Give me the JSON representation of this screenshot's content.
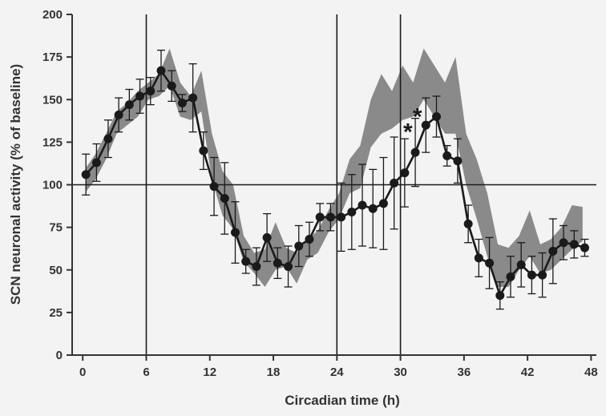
{
  "chart_data": {
    "type": "line",
    "title": "",
    "xlabel": "Circadian time (h)",
    "ylabel": "SCN neuronal activity (% of baseline)",
    "xlim": [
      -1,
      48.5
    ],
    "ylim": [
      0,
      200
    ],
    "x_ticks": [
      0,
      6,
      12,
      18,
      24,
      30,
      36,
      42,
      48
    ],
    "y_ticks": [
      0,
      25,
      50,
      75,
      100,
      125,
      150,
      175,
      200
    ],
    "reference_lines": {
      "vertical": [
        6,
        24,
        30
      ],
      "horizontal": [
        100
      ]
    },
    "annotations": [
      {
        "text": "*",
        "x": 30.7,
        "y": 132
      },
      {
        "text": "*",
        "x": 31.6,
        "y": 141
      }
    ],
    "shaded_band": {
      "x": [
        0.3,
        1.2,
        2.2,
        3.2,
        4.2,
        5.2,
        6.2,
        7.2,
        8.2,
        9.2,
        10.2,
        11.2,
        12.2,
        13.2,
        14.2,
        15.2,
        16.2,
        17.2,
        18.2,
        19.2,
        20.2,
        21.2,
        22.2,
        23.2,
        24.2,
        25.2,
        26.2,
        27.2,
        28.2,
        29.2,
        30.2,
        31.2,
        32.2,
        33.2,
        34.2,
        35.2,
        36.2,
        37.2,
        38.2,
        39.2,
        40.2,
        41.2,
        42.2,
        43.2,
        44.2,
        45.2,
        46.2,
        47.2
      ],
      "upper": [
        110,
        118,
        130,
        143,
        148,
        155,
        160,
        165,
        180,
        160,
        152,
        167,
        130,
        108,
        100,
        70,
        60,
        62,
        78,
        63,
        60,
        68,
        73,
        85,
        95,
        115,
        123,
        150,
        165,
        155,
        170,
        160,
        180,
        170,
        160,
        175,
        130,
        115,
        95,
        65,
        63,
        70,
        85,
        65,
        68,
        75,
        88,
        87
      ],
      "lower": [
        96,
        103,
        115,
        130,
        135,
        140,
        150,
        152,
        158,
        140,
        138,
        143,
        103,
        82,
        74,
        55,
        48,
        40,
        50,
        52,
        42,
        56,
        60,
        72,
        80,
        95,
        98,
        122,
        130,
        133,
        138,
        140,
        150,
        140,
        130,
        130,
        100,
        80,
        58,
        40,
        40,
        50,
        58,
        48,
        50,
        56,
        62,
        67
      ]
    },
    "series": [
      {
        "x": [
          0.3,
          1.3,
          2.4,
          3.4,
          4.4,
          5.4,
          6.4,
          7.4,
          8.4,
          9.4,
          10.4,
          11.4,
          12.4,
          13.4,
          14.4,
          15.4,
          16.4,
          17.4,
          18.4,
          19.4,
          20.4,
          21.4,
          22.4,
          23.4,
          24.4,
          25.4,
          26.4,
          27.4,
          28.4,
          29.4,
          30.4,
          31.4,
          32.4,
          33.4,
          34.4,
          35.4,
          36.4,
          37.4,
          38.4,
          39.4,
          40.4,
          41.4,
          42.4,
          43.4,
          44.4,
          45.4,
          46.4,
          47.4
        ],
        "y": [
          106,
          113,
          127,
          141,
          147,
          152,
          155,
          167,
          158,
          148,
          151,
          120,
          99,
          92,
          72,
          55,
          52,
          69,
          54,
          52,
          64,
          68,
          81,
          81,
          81,
          84,
          88,
          86,
          89,
          101,
          107,
          119,
          135,
          140,
          117,
          114,
          77,
          57,
          54,
          35,
          46,
          53,
          47,
          47,
          61,
          66,
          65,
          63
        ],
        "err": [
          12,
          11,
          11,
          10,
          9,
          10,
          8,
          12,
          9,
          5,
          20,
          11,
          17,
          21,
          18,
          7,
          11,
          14,
          9,
          12,
          12,
          10,
          8,
          8,
          20,
          22,
          24,
          23,
          27,
          27,
          20,
          20,
          16,
          12,
          6,
          13,
          11,
          11,
          15,
          8,
          12,
          13,
          11,
          13,
          19,
          10,
          8,
          5
        ]
      }
    ]
  }
}
